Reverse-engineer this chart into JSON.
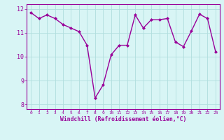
{
  "x": [
    0,
    1,
    2,
    3,
    4,
    5,
    6,
    7,
    8,
    9,
    10,
    11,
    12,
    13,
    14,
    15,
    16,
    17,
    18,
    19,
    20,
    21,
    22,
    23
  ],
  "y": [
    11.85,
    11.6,
    11.75,
    11.6,
    11.35,
    11.2,
    11.05,
    10.48,
    8.27,
    8.82,
    10.08,
    10.48,
    10.48,
    11.75,
    11.2,
    11.55,
    11.55,
    11.6,
    10.62,
    10.42,
    11.08,
    11.78,
    11.6,
    10.22
  ],
  "line_color": "#990099",
  "marker": "D",
  "marker_size": 2,
  "bg_color": "#d8f5f5",
  "grid_color": "#b0dede",
  "xlabel": "Windchill (Refroidissement éolien,°C)",
  "xlabel_color": "#990099",
  "tick_color": "#990099",
  "spine_color": "#990099",
  "ylim": [
    7.8,
    12.2
  ],
  "xlim": [
    -0.5,
    23.5
  ],
  "yticks": [
    8,
    9,
    10,
    11,
    12
  ],
  "xticks": [
    0,
    1,
    2,
    3,
    4,
    5,
    6,
    7,
    8,
    9,
    10,
    11,
    12,
    13,
    14,
    15,
    16,
    17,
    18,
    19,
    20,
    21,
    22,
    23
  ],
  "xtick_fontsize": 4.5,
  "ytick_fontsize": 6.0,
  "xlabel_fontsize": 5.8,
  "linewidth": 1.0
}
